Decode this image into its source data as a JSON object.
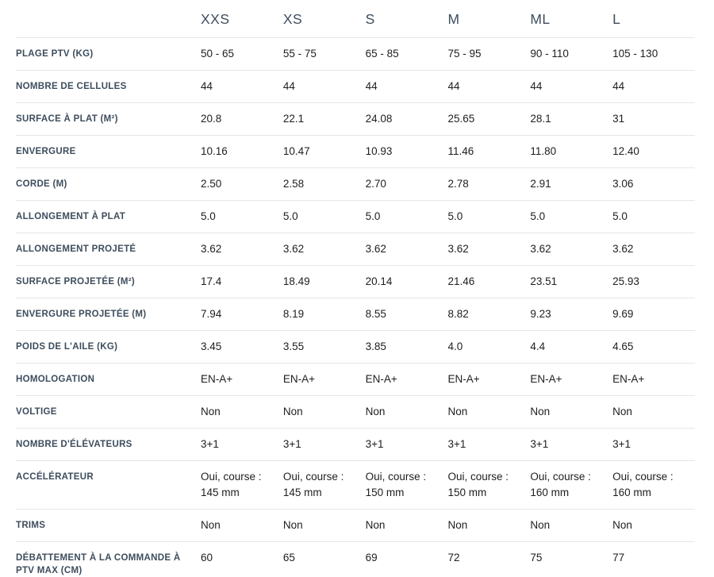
{
  "colors": {
    "heading_text": "#3d4d5c",
    "label_text": "#3d4d5c",
    "value_text": "#1e1e1e",
    "divider": "#e6e6e6",
    "background": "#ffffff"
  },
  "table": {
    "columns": [
      "XXS",
      "XS",
      "S",
      "M",
      "ML",
      "L"
    ],
    "rows": [
      {
        "label": "PLAGE PTV (KG)",
        "values": [
          "50 - 65",
          "55 - 75",
          "65 - 85",
          "75 - 95",
          "90 - 110",
          "105 - 130"
        ]
      },
      {
        "label": "NOMBRE DE CELLULES",
        "values": [
          "44",
          "44",
          "44",
          "44",
          "44",
          "44"
        ]
      },
      {
        "label": "SURFACE À PLAT (M²)",
        "values": [
          "20.8",
          "22.1",
          "24.08",
          "25.65",
          "28.1",
          "31"
        ]
      },
      {
        "label": "ENVERGURE",
        "values": [
          "10.16",
          "10.47",
          "10.93",
          "11.46",
          "11.80",
          "12.40"
        ]
      },
      {
        "label": "CORDE (M)",
        "values": [
          "2.50",
          "2.58",
          "2.70",
          "2.78",
          "2.91",
          "3.06"
        ]
      },
      {
        "label": "ALLONGEMENT À PLAT",
        "values": [
          "5.0",
          "5.0",
          "5.0",
          "5.0",
          "5.0",
          "5.0"
        ]
      },
      {
        "label": "ALLONGEMENT PROJETÉ",
        "values": [
          "3.62",
          "3.62",
          "3.62",
          "3.62",
          "3.62",
          "3.62"
        ]
      },
      {
        "label": "SURFACE PROJETÉE (M²)",
        "values": [
          "17.4",
          "18.49",
          "20.14",
          "21.46",
          "23.51",
          "25.93"
        ]
      },
      {
        "label": "ENVERGURE PROJETÉE (M)",
        "values": [
          "7.94",
          "8.19",
          "8.55",
          "8.82",
          "9.23",
          "9.69"
        ]
      },
      {
        "label": "POIDS DE L'AILE (KG)",
        "values": [
          "3.45",
          "3.55",
          "3.85",
          "4.0",
          "4.4",
          "4.65"
        ]
      },
      {
        "label": "HOMOLOGATION",
        "values": [
          "EN-A+",
          "EN-A+",
          "EN-A+",
          "EN-A+",
          "EN-A+",
          "EN-A+"
        ]
      },
      {
        "label": "VOLTIGE",
        "values": [
          "Non",
          "Non",
          "Non",
          "Non",
          "Non",
          "Non"
        ]
      },
      {
        "label": "NOMBRE D'ÉLÉVATEURS",
        "values": [
          "3+1",
          "3+1",
          "3+1",
          "3+1",
          "3+1",
          "3+1"
        ]
      },
      {
        "label": "ACCÉLÉRATEUR",
        "values": [
          "Oui, course :\n145 mm",
          "Oui, course :\n145 mm",
          "Oui, course :\n150 mm",
          "Oui, course :\n150 mm",
          "Oui, course :\n160 mm",
          "Oui, course :\n160 mm"
        ]
      },
      {
        "label": "TRIMS",
        "values": [
          "Non",
          "Non",
          "Non",
          "Non",
          "Non",
          "Non"
        ]
      },
      {
        "label": "DÉBATTEMENT À LA COMMANDE À PTV MAX (CM)",
        "values": [
          "60",
          "65",
          "69",
          "72",
          "75",
          "77"
        ]
      }
    ]
  }
}
